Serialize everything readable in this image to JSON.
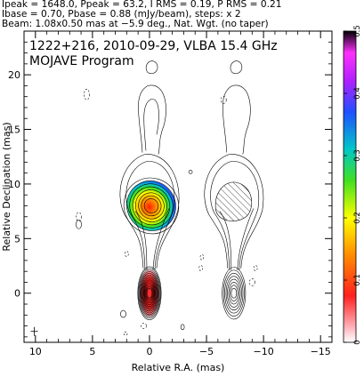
{
  "header": {
    "line1": "Ipeak = 1648.0, Ppeak = 63.2, I RMS = 0.19, P RMS = 0.21",
    "line2": "Ibase = 0.70, Pbase = 0.88 (mJy/beam), steps: x 2",
    "line3": "Beam: 1.08x0.50 mas at −5.9 deg., Nat. Wgt. (no taper)"
  },
  "inset": {
    "line1": "1222+216, 2010-09-29, VLBA 15.4 GHz",
    "line2": "MOJAVE Program"
  },
  "chart_data": {
    "type": "contour-image",
    "xlabel": "Relative R.A. (mas)",
    "ylabel": "Relative Declination (mas)",
    "xlim": [
      11,
      -16
    ],
    "ylim": [
      -4.5,
      24
    ],
    "xticks": [
      10,
      5,
      0,
      -5,
      -10,
      -15
    ],
    "yticks": [
      0,
      5,
      10,
      15,
      20
    ],
    "colorbar": {
      "range": [
        0,
        0.5
      ],
      "ticks": [
        0,
        0.1,
        0.2,
        0.3,
        0.4,
        0.5
      ],
      "tick_labels": [
        "0",
        "0.1",
        "0.2",
        "0.3",
        "0.4",
        "0.5"
      ]
    },
    "stokes_i_panel": {
      "core": {
        "x": 0,
        "y": 0
      },
      "knot": {
        "x": 0,
        "y": 8
      },
      "jet_extent_y": [
        -1.5,
        13.5
      ]
    },
    "polarization_panel": {
      "offset_x": -7.4,
      "core": {
        "x": -7.4,
        "y": 0
      },
      "knot": {
        "x": -7.4,
        "y": 8
      }
    },
    "beam": {
      "major": 1.08,
      "minor": 0.5,
      "pa": -5.9
    },
    "colors": {
      "contour": "#000000",
      "frame": "#000000"
    }
  }
}
